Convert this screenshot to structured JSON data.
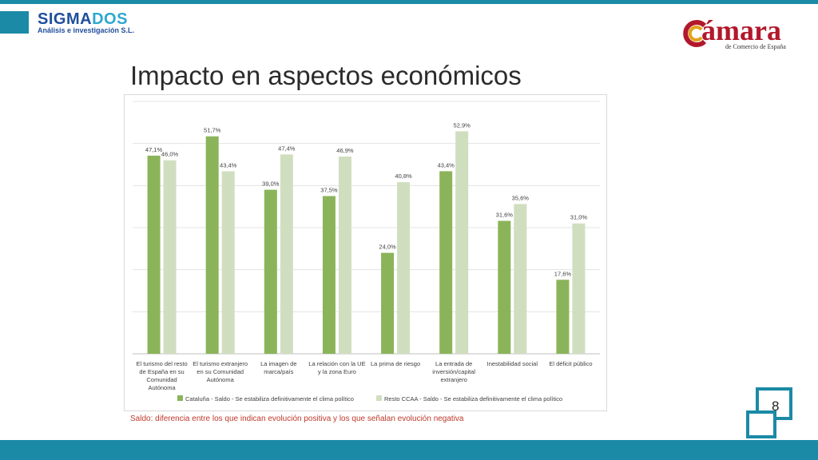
{
  "header": {
    "logo_name_part1": "SIGMA",
    "logo_name_part2": "DOS",
    "logo_subtitle": "Análisis e investigación S.L.",
    "camara_word": "ámara",
    "camara_subtitle": "de Comercio de España"
  },
  "page": {
    "title": "Impacto en aspectos económicos",
    "footnote": "Saldo: diferencia entre los que indican evolución positiva y los que señalan evolución negativa",
    "page_number": "8"
  },
  "colors": {
    "brand": "#1b8aa6",
    "series1": "#8bb45a",
    "series2": "#d0dec0",
    "footnote": "#c0392b"
  },
  "chart_data": {
    "type": "bar",
    "categories": [
      "El turismo del resto de España en su Comunidad Autónoma",
      "El turismo extranjero en su Comunidad Autónoma",
      "La imagen de marca/país",
      "La relación con la UE y la zona Euro",
      "La prima de riesgo",
      "La entrada de inversión/capital extranjero",
      "Inestabilidad social",
      "El déficit público"
    ],
    "category_lines": [
      [
        "El turismo del resto",
        "de España en su",
        "Comunidad",
        "Autónoma"
      ],
      [
        "El turismo extranjero",
        "en su Comunidad",
        "Autónoma"
      ],
      [
        "La imagen de",
        "marca/país"
      ],
      [
        "La relación con la UE",
        "y la zona Euro"
      ],
      [
        "La prima de riesgo"
      ],
      [
        "La entrada de",
        "inversión/capital",
        "extranjero"
      ],
      [
        "Inestabilidad social"
      ],
      [
        "El déficit público"
      ]
    ],
    "series": [
      {
        "name": "Cataluña - Saldo - Se estabiliza definitivamente el clima político",
        "values": [
          47.1,
          51.7,
          39.0,
          37.5,
          24.0,
          43.4,
          31.6,
          17.6
        ],
        "labels": [
          "47,1%",
          "51,7%",
          "39,0%",
          "37,5%",
          "24,0%",
          "43,4%",
          "31,6%",
          "17,6%"
        ],
        "color": "#8bb45a"
      },
      {
        "name": "Resto CCAA - Saldo - Se estabiliza definitivamente el clima político",
        "values": [
          46.0,
          43.4,
          47.4,
          46.9,
          40.8,
          52.9,
          35.6,
          31.0
        ],
        "labels": [
          "46,0%",
          "43,4%",
          "47,4%",
          "46,9%",
          "40,8%",
          "52,9%",
          "35,6%",
          "31,0%"
        ],
        "color": "#d0dec0"
      }
    ],
    "ylim": [
      0,
      60
    ],
    "grid": true,
    "legend_position": "bottom"
  }
}
